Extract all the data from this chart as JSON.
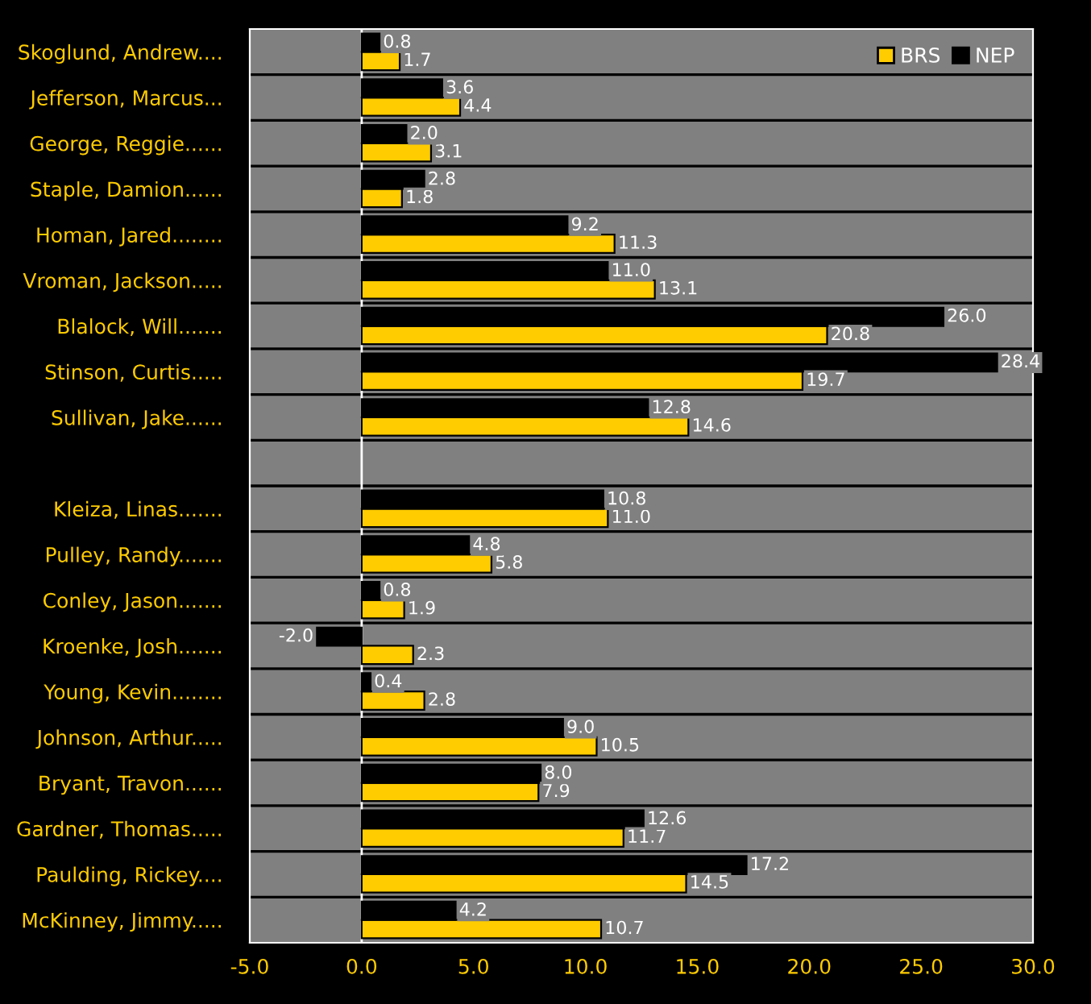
{
  "chart_data": {
    "type": "bar",
    "orientation": "horizontal",
    "categories": [
      "Skoglund, Andrew....",
      "Jefferson, Marcus...",
      "George, Reggie......",
      "Staple, Damion......",
      "Homan, Jared........",
      "Vroman, Jackson.....",
      "Blalock, Will.......",
      "Stinson, Curtis.....",
      "Sullivan, Jake......",
      null,
      "Kleiza, Linas.......",
      "Pulley, Randy.......",
      "Conley, Jason.......",
      "Kroenke, Josh.......",
      "Young, Kevin........",
      "Johnson, Arthur.....",
      "Bryant, Travon......",
      "Gardner, Thomas.....",
      "Paulding, Rickey....",
      "McKinney, Jimmy....."
    ],
    "series": [
      {
        "name": "BRS",
        "color": "#ffcc00",
        "values": [
          1.7,
          4.4,
          3.1,
          1.8,
          11.3,
          13.1,
          20.8,
          19.7,
          14.6,
          null,
          11.0,
          5.8,
          1.9,
          2.3,
          2.8,
          10.5,
          7.9,
          11.7,
          14.5,
          10.7
        ],
        "value_labels": [
          "1.7",
          "4.4",
          "3.1",
          "1.8",
          "11.3",
          "13.1",
          "20.8",
          "19.7",
          "14.6",
          null,
          "11.0",
          "5.8",
          "1.9",
          "2.3",
          "2.8",
          "10.5",
          "7.9",
          "11.7",
          "14.5",
          "10.7"
        ]
      },
      {
        "name": "NEP",
        "color": "#000000",
        "values": [
          0.8,
          3.6,
          2.0,
          2.8,
          9.2,
          11.0,
          26.0,
          28.4,
          12.8,
          null,
          10.8,
          4.8,
          0.8,
          -2.0,
          0.4,
          9.0,
          8.0,
          12.6,
          17.2,
          4.2
        ],
        "value_labels": [
          "0.8",
          "3.6",
          "2.0",
          "2.8",
          "9.2",
          "11.0",
          "26.0",
          "28.4",
          "12.8",
          null,
          "10.8",
          "4.8",
          "0.8",
          "-2.0",
          "0.4",
          "9.0",
          "8.0",
          "12.6",
          "17.2",
          "4.2"
        ]
      }
    ],
    "xlim": [
      -5,
      30
    ],
    "xticks": [
      {
        "value": -5,
        "label": "-5.0"
      },
      {
        "value": 0,
        "label": "0.0"
      },
      {
        "value": 5,
        "label": "5.0"
      },
      {
        "value": 10,
        "label": "10.0"
      },
      {
        "value": 15,
        "label": "15.0"
      },
      {
        "value": 20,
        "label": "20.0"
      },
      {
        "value": 25,
        "label": "25.0"
      },
      {
        "value": 30,
        "label": "30.0"
      }
    ],
    "ref_lines": [
      {
        "axis": "x",
        "value": 0,
        "color": "#ffffff"
      }
    ],
    "grid": "y",
    "legend": "top right"
  }
}
